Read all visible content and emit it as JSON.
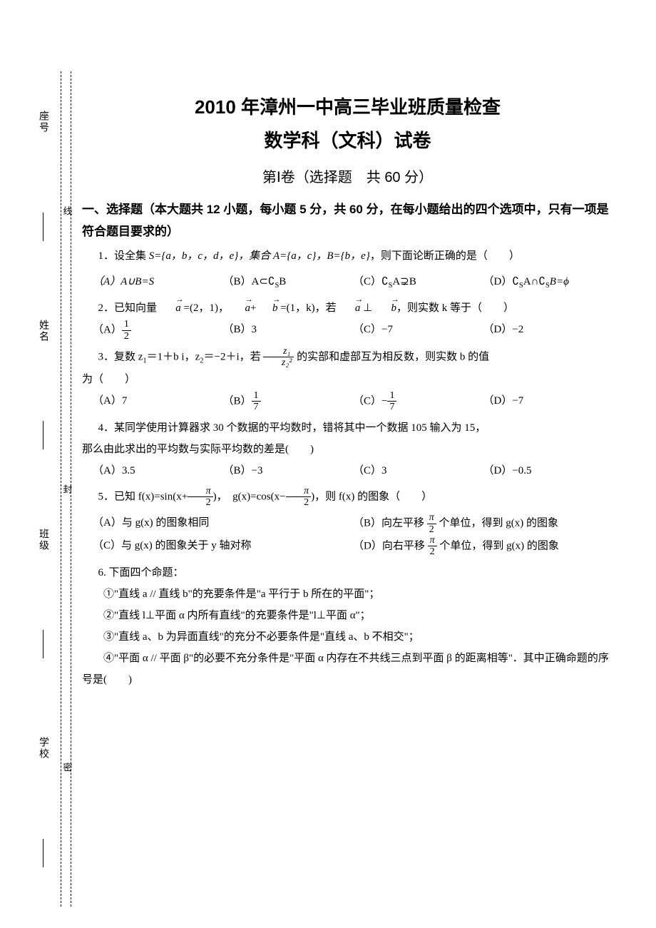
{
  "margin": {
    "vertical_fields": [
      "座号",
      "姓名",
      "班级",
      "学校"
    ],
    "seal_words": [
      "线",
      "封",
      "密"
    ]
  },
  "header": {
    "title_line1": "2010 年漳州一中高三毕业班质量检查",
    "title_line2": "数学科（文科）试卷",
    "subtitle": "第Ⅰ卷（选择题　共 60 分）"
  },
  "section": {
    "heading": "一、选择题（本大题共 12 小题，每小题 5 分，共 60 分，在每小题给出的四个选项中，只有一项是符合题目要求的）"
  },
  "q1": {
    "stem_a": "1．设全集 ",
    "sets": "S={a，b，c，d，e}，集合 A={a，c}，B={b，e}",
    "stem_b": "，则下面论断正确的是（　　）",
    "optA": "（A）A∪B=S",
    "optB_pre": "（B）A⊂∁",
    "optB_sub": "S",
    "optB_post": "B",
    "optC_pre": "（C）∁",
    "optC_sub": "S",
    "optC_mid": "A",
    "optC_nsub": "⊋",
    "optC_post": "B",
    "optD_pre": "（D）∁",
    "optD_s1": "S",
    "optD_mid": "A∩∁",
    "optD_s2": "S",
    "optD_post": "B=ϕ"
  },
  "q2": {
    "stem_a": "2．已知向量 ",
    "a": "a",
    "stem_b": " =(2，1)，",
    "ab": "a",
    "plus": "+",
    "b": "b",
    "stem_c": " =(1，k)，若 ",
    "perp": " ⊥ ",
    "stem_d": "，则实数 k 等于（　　）",
    "optA_pre": "（A）",
    "optA_num": "1",
    "optA_den": "2",
    "optB": "（B）3",
    "optC": "（C）−7",
    "optD": "（D）−2"
  },
  "q3": {
    "stem_a": "3．复数 z",
    "s1": "1",
    "stem_b": "＝1＋b i，z",
    "s2": "2",
    "stem_c": "＝−2＋i，若 ",
    "frac_num": "z₁",
    "frac_den": "z₂²",
    "stem_d": " 的实部和虚部互为相反数，则实数 b 的值",
    "stem_e": "为（　　）",
    "optA": "（A）7",
    "optB_pre": "（B）",
    "optB_num": "1",
    "optB_den": "7",
    "optC_pre": "（C）−",
    "optC_num": "1",
    "optC_den": "7",
    "optD": "（D）−7"
  },
  "q4": {
    "stem_a": "4．某同学使用计算器求 30 个数据的平均数时，错将其中一个数据 105 输入为 15，",
    "stem_b": "那么由此求出的平均数与实际平均数的差是(　　)",
    "optA": "（A）3.5",
    "optB": "（B）−3",
    "optC": "（C）3",
    "optD": "（D）−0.5"
  },
  "q5": {
    "stem_a": "5．已知 f(x)=sin(x+",
    "pi": "π",
    "two": "2",
    "stem_b": ")，　g(x)=cos(x−",
    "stem_c": ")，则 f(x) 的图象（　　）",
    "optA": "（A）与 g(x) 的图象相同",
    "optB_pre": "（B）向左平移 ",
    "optB_post": " 个单位，得到 g(x) 的图象",
    "optC": "（C）与 g(x) 的图象关于 y 轴对称",
    "optD_pre": "（D）向右平移 ",
    "optD_post": " 个单位，得到 g(x) 的图象"
  },
  "q6": {
    "stem": "6. 下面四个命题：",
    "p1": "①\"直线 a // 直线 b\"的充要条件是\"a 平行于 b 所在的平面\"；",
    "p2": "②\"直线 l⊥平面 α 内所有直线\"的充要条件是\"l⊥平面 α\"；",
    "p3": "③\"直线 a、b 为异面直线\"的充分不必要条件是\"直线 a、b 不相交\"；",
    "p4": "④\"平面 α // 平面 β\"的必要不充分条件是\"平面 α 内存在不共线三点到平面 β 的距离相等\"．其中正确命题的序号是(　　)"
  },
  "style": {
    "page_bg": "#ffffff",
    "text_color": "#000000",
    "title_font": "SimHei",
    "body_font": "SimSun",
    "title_fontsize": 26,
    "subtitle_fontsize": 20,
    "section_fontsize": 17,
    "body_fontsize": 15,
    "line_height": 2.0,
    "dash_color": "#000000"
  }
}
